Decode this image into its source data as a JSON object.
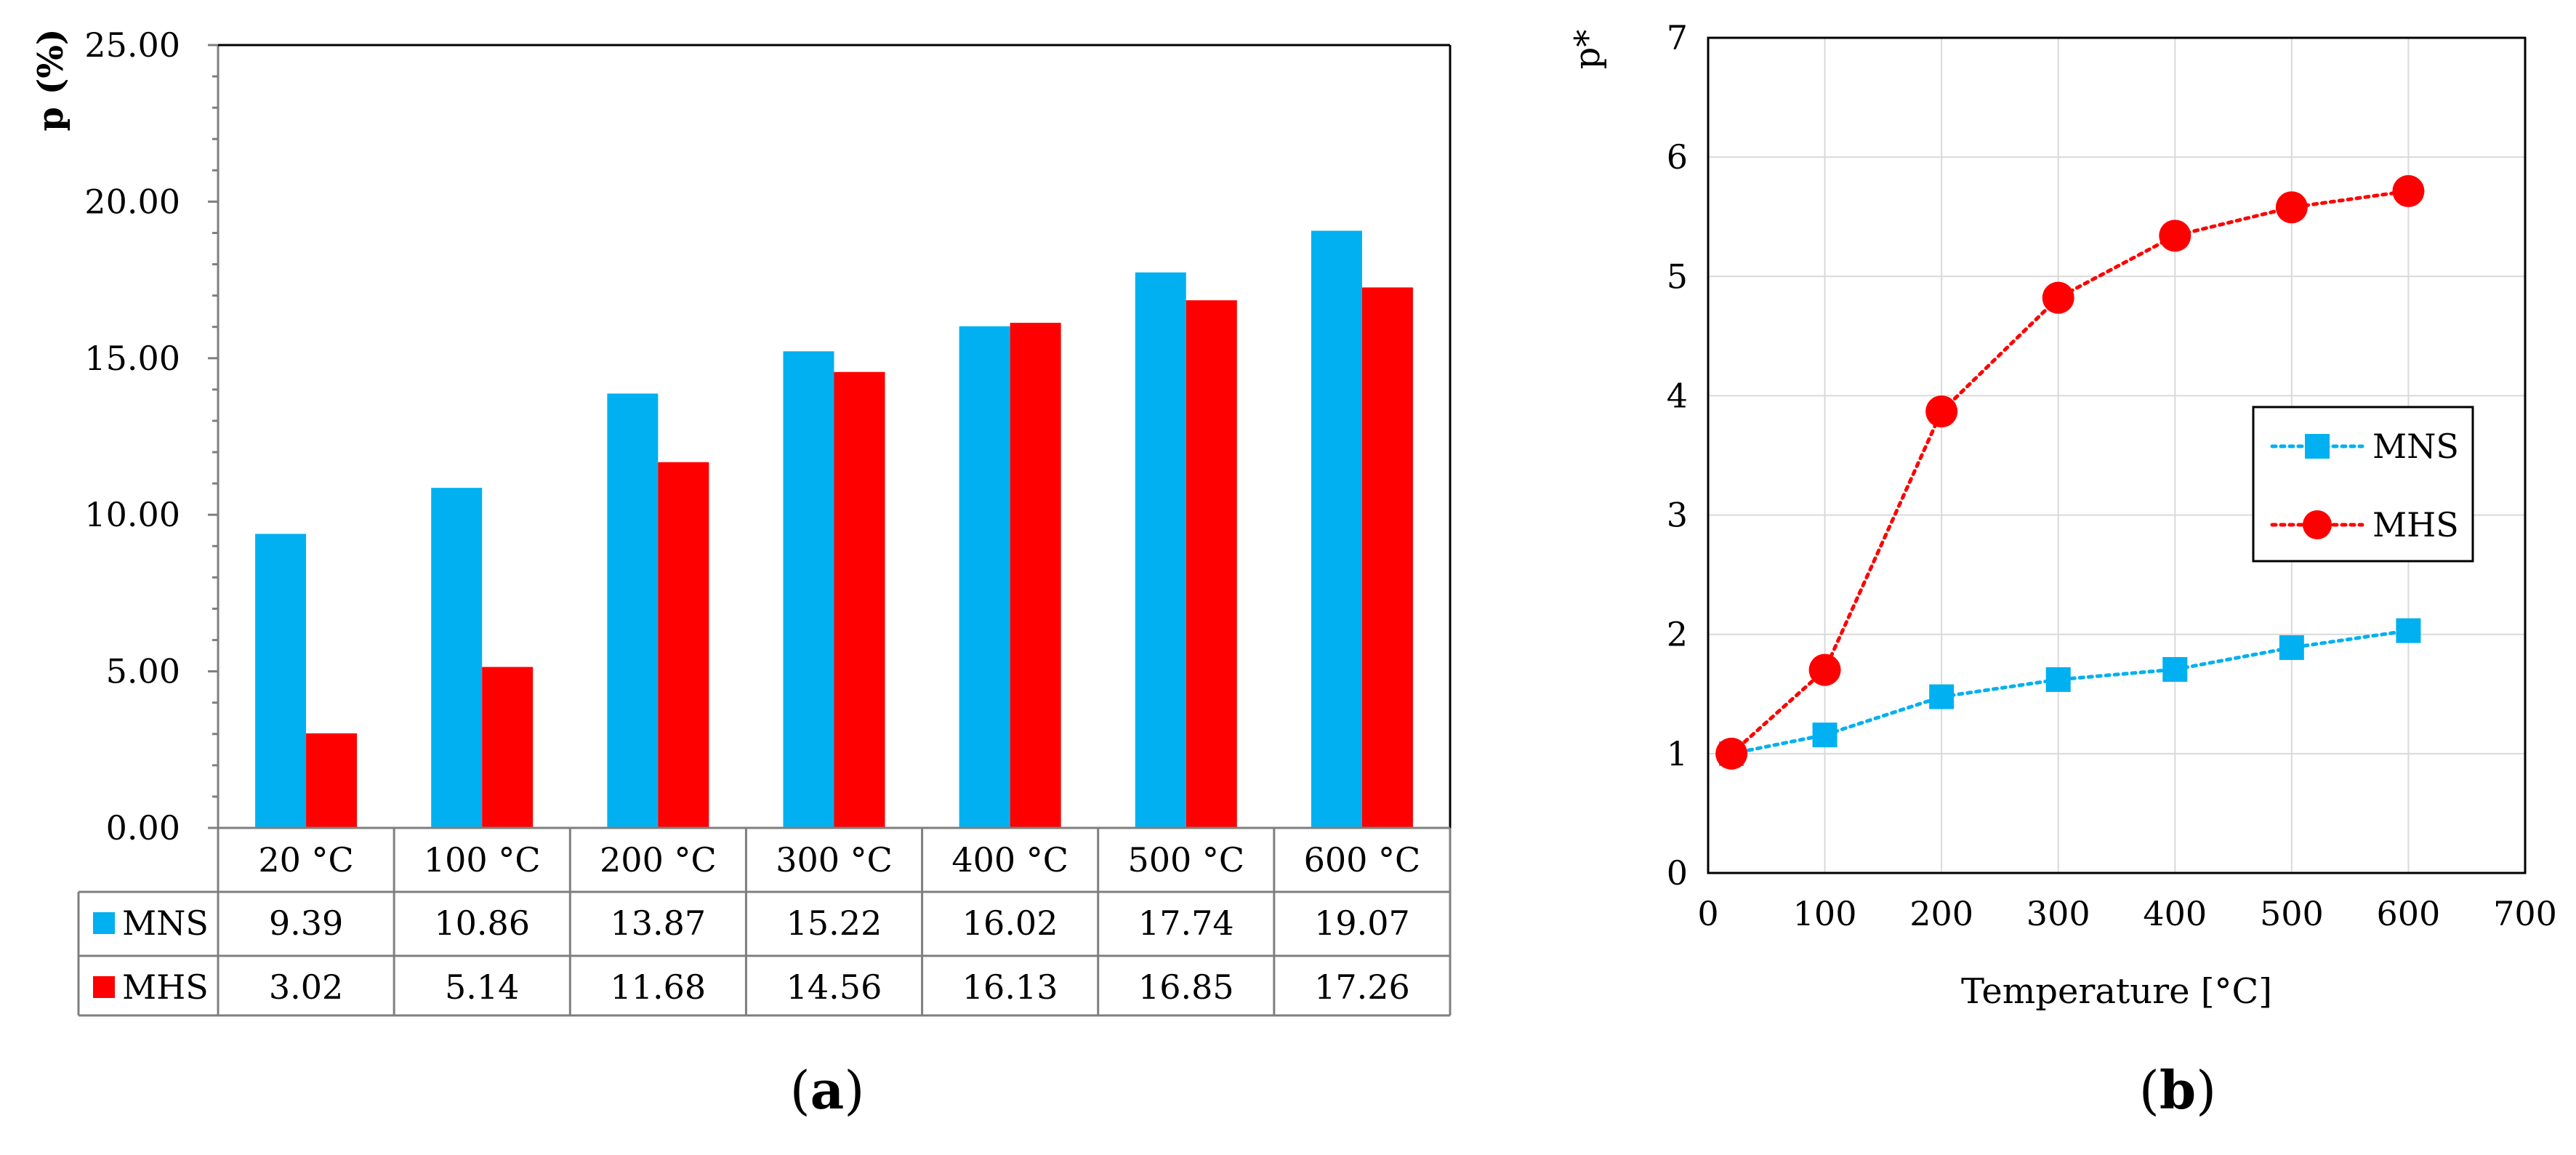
{
  "chart_data": [
    {
      "type": "bar",
      "panel_label": "a",
      "title": "",
      "xlabel": "",
      "ylabel": "p (%)",
      "ylim": [
        0,
        25
      ],
      "yticks": [
        "0.00",
        "5.00",
        "10.00",
        "15.00",
        "20.00",
        "25.00"
      ],
      "categories": [
        "20 °C",
        "100 °C",
        "200 °C",
        "300 °C",
        "400 °C",
        "500 °C",
        "600 °C"
      ],
      "series": [
        {
          "name": "MNS",
          "color": "#00B0F0",
          "values": [
            9.39,
            10.86,
            13.87,
            15.22,
            16.02,
            17.74,
            19.07
          ]
        },
        {
          "name": "MHS",
          "color": "#FF0000",
          "values": [
            3.02,
            5.14,
            11.68,
            14.56,
            16.13,
            16.85,
            17.26
          ]
        }
      ],
      "data_table": {
        "MNS": [
          "9.39",
          "10.86",
          "13.87",
          "15.22",
          "16.02",
          "17.74",
          "19.07"
        ],
        "MHS": [
          "3.02",
          "5.14",
          "11.68",
          "14.56",
          "16.13",
          "16.85",
          "17.26"
        ]
      },
      "grid": false
    },
    {
      "type": "line",
      "panel_label": "b",
      "title": "",
      "xlabel": "Temperature [°C]",
      "ylabel": "p*",
      "xlim": [
        0,
        700
      ],
      "ylim": [
        0,
        7
      ],
      "xticks": [
        "0",
        "100",
        "200",
        "300",
        "400",
        "500",
        "600",
        "700"
      ],
      "yticks": [
        "0",
        "1",
        "2",
        "3",
        "4",
        "5",
        "6",
        "7"
      ],
      "x": [
        20,
        100,
        200,
        300,
        400,
        500,
        600
      ],
      "series": [
        {
          "name": "MNS",
          "color": "#00B0F0",
          "marker": "square",
          "linestyle": "dotted",
          "values": [
            1.0,
            1.157,
            1.477,
            1.621,
            1.706,
            1.889,
            2.031
          ]
        },
        {
          "name": "MHS",
          "color": "#FF0000",
          "marker": "circle",
          "linestyle": "dotted",
          "values": [
            1.0,
            1.702,
            3.868,
            4.821,
            5.341,
            5.579,
            5.715
          ]
        }
      ],
      "grid": true,
      "legend_position": "center-right"
    }
  ]
}
